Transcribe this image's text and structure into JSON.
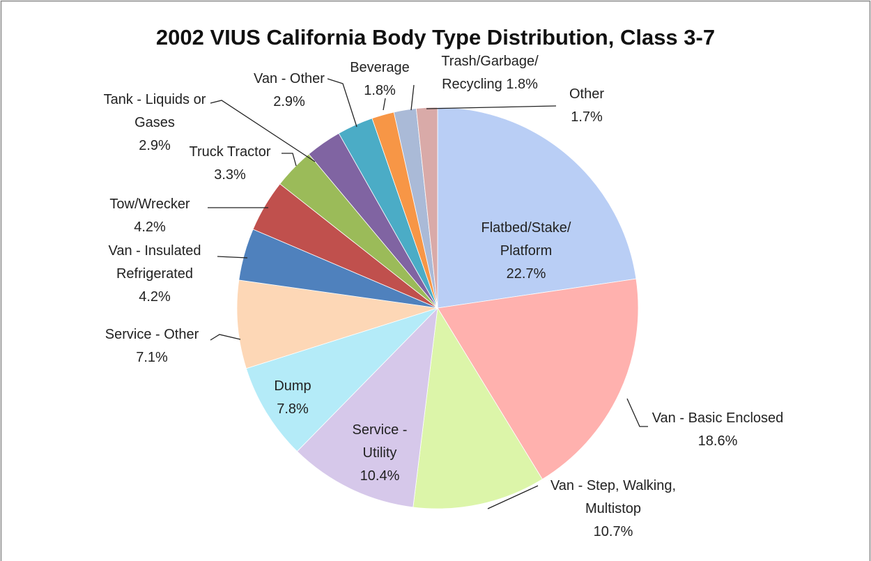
{
  "chart_data": {
    "type": "pie",
    "title": "2002 VIUS California Body Type Distribution, Class 3-7",
    "categories": [
      "Flatbed/Stake/\nPlatform",
      "Van - Basic Enclosed",
      "Van - Step, Walking,\nMultistop",
      "Service -\nUtility",
      "Dump",
      "Service - Other",
      "Van - Insulated\nRefrigerated",
      "Tow/Wrecker",
      "Truck Tractor",
      "Tank - Liquids or\nGases",
      "Van - Other",
      "Beverage",
      "Trash/Garbage/\nRecycling",
      "Other"
    ],
    "values": [
      22.7,
      18.6,
      10.7,
      10.4,
      7.8,
      7.1,
      4.2,
      4.2,
      3.3,
      2.9,
      2.9,
      1.8,
      1.8,
      1.7
    ],
    "value_labels": [
      "22.7%",
      "18.6%",
      "10.7%",
      "10.4%",
      "7.8%",
      "7.1%",
      "4.2%",
      "4.2%",
      "3.3%",
      "2.9%",
      "2.9%",
      "1.8%",
      "1.8%",
      "1.7%"
    ],
    "colors": [
      "#b9cef5",
      "#ffb1ae",
      "#dcf5a9",
      "#d6c8ea",
      "#b4ebf8",
      "#fdd7b6",
      "#4f81bd",
      "#c0504d",
      "#9bbb59",
      "#8064a2",
      "#4bacc6",
      "#f79646",
      "#aabad7",
      "#d9aaa8"
    ]
  }
}
